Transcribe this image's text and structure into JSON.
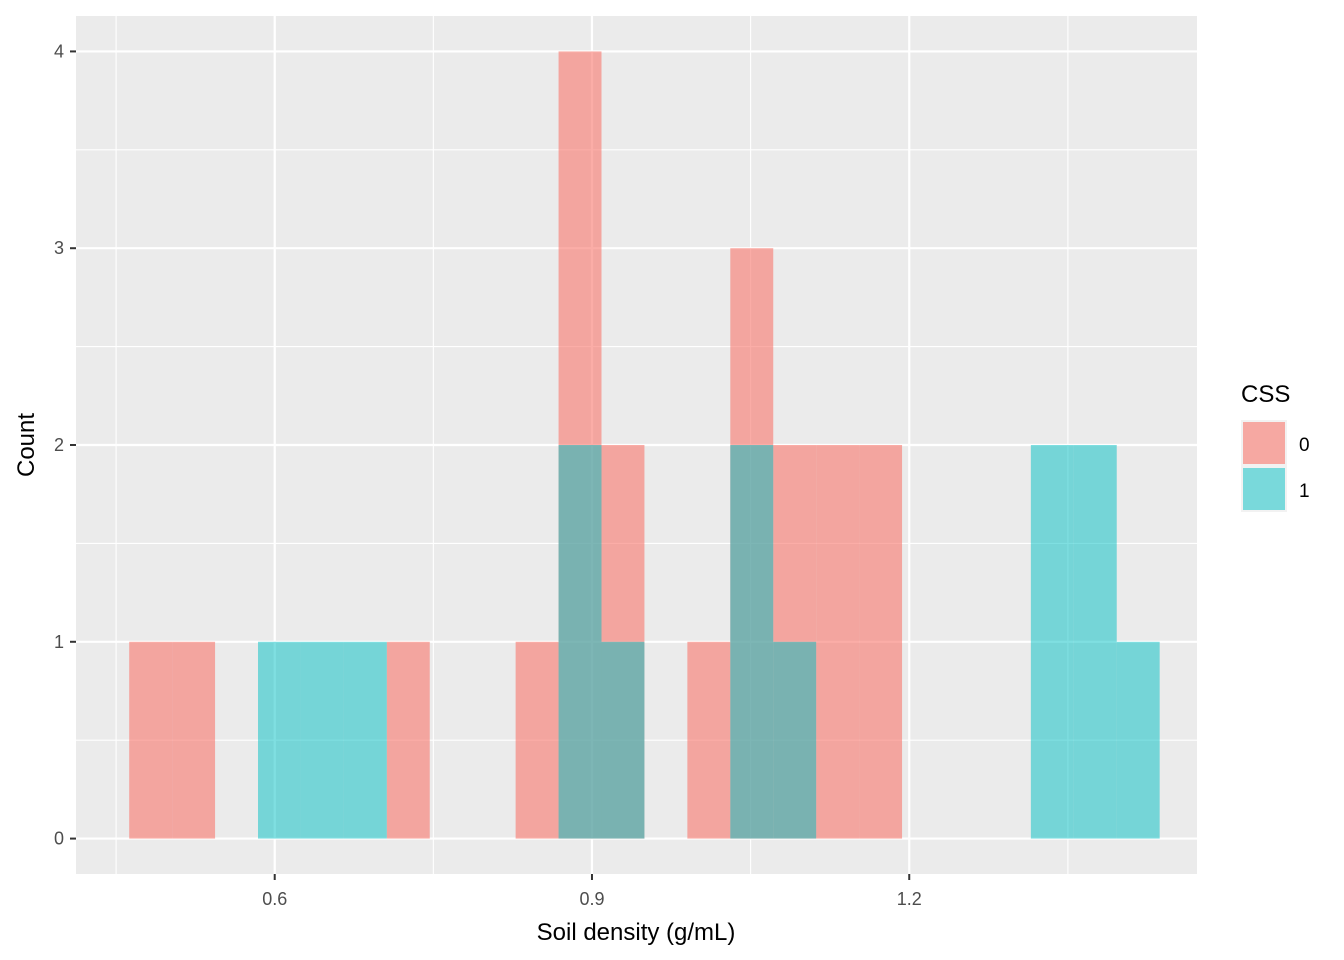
{
  "chart_data": {
    "type": "bar",
    "subtype": "histogram",
    "xlabel": "Soil density (g/mL)",
    "ylabel": "Count",
    "xlim": [
      0.4121,
      1.4721
    ],
    "ylim": [
      -0.18,
      4.18
    ],
    "x_ticks": [
      0.6,
      0.9,
      1.2
    ],
    "x_tick_labels": [
      "0.6",
      "0.9",
      "1.2"
    ],
    "y_ticks": [
      0,
      1,
      2,
      3,
      4
    ],
    "y_tick_labels": [
      "0",
      "1",
      "2",
      "3",
      "4"
    ],
    "grid": true,
    "bin_width": 0.0406,
    "legend": {
      "title": "CSS",
      "position": "right",
      "entries": [
        {
          "label": "0",
          "color": "#F8766D"
        },
        {
          "label": "1",
          "color": "#00BFC4"
        }
      ]
    },
    "series": [
      {
        "name": "0",
        "color": "#F8766D",
        "opacity": 0.6,
        "bins": [
          {
            "x0": 0.4624,
            "x1": 0.503,
            "count": 1
          },
          {
            "x0": 0.503,
            "x1": 0.5436,
            "count": 1
          },
          {
            "x0": 0.706,
            "x1": 0.7466,
            "count": 1
          },
          {
            "x0": 0.8278,
            "x1": 0.8684,
            "count": 1
          },
          {
            "x0": 0.8684,
            "x1": 0.909,
            "count": 4
          },
          {
            "x0": 0.909,
            "x1": 0.9496,
            "count": 2
          },
          {
            "x0": 0.9902,
            "x1": 1.0308,
            "count": 1
          },
          {
            "x0": 1.0308,
            "x1": 1.0714,
            "count": 3
          },
          {
            "x0": 1.0714,
            "x1": 1.112,
            "count": 2
          },
          {
            "x0": 1.112,
            "x1": 1.1526,
            "count": 2
          },
          {
            "x0": 1.1526,
            "x1": 1.1932,
            "count": 2
          }
        ]
      },
      {
        "name": "1",
        "color": "#00BFC4",
        "opacity": 0.5,
        "bins": [
          {
            "x0": 0.5842,
            "x1": 0.6248,
            "count": 1
          },
          {
            "x0": 0.6248,
            "x1": 0.6654,
            "count": 1
          },
          {
            "x0": 0.6654,
            "x1": 0.706,
            "count": 1
          },
          {
            "x0": 0.8684,
            "x1": 0.909,
            "count": 2
          },
          {
            "x0": 0.909,
            "x1": 0.9496,
            "count": 1
          },
          {
            "x0": 1.0308,
            "x1": 1.0714,
            "count": 2
          },
          {
            "x0": 1.0714,
            "x1": 1.112,
            "count": 1
          },
          {
            "x0": 1.315,
            "x1": 1.3556,
            "count": 2
          },
          {
            "x0": 1.3556,
            "x1": 1.3962,
            "count": 2
          },
          {
            "x0": 1.3962,
            "x1": 1.4368,
            "count": 1
          }
        ]
      }
    ]
  }
}
